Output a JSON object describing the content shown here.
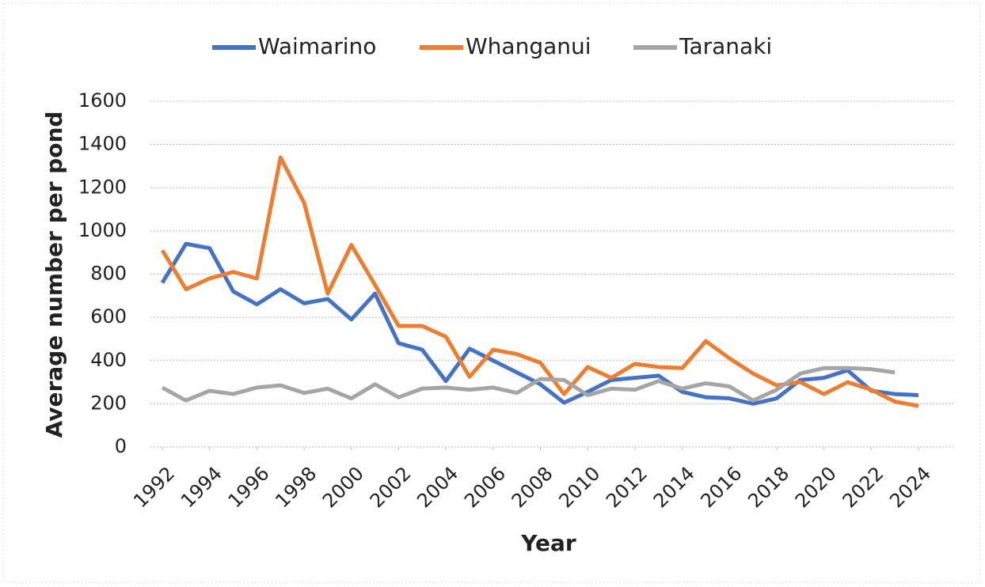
{
  "chart_data": {
    "type": "line",
    "x": [
      1992,
      1993,
      1994,
      1995,
      1996,
      1997,
      1998,
      1999,
      2000,
      2001,
      2002,
      2003,
      2004,
      2005,
      2006,
      2007,
      2008,
      2009,
      2010,
      2011,
      2012,
      2013,
      2014,
      2015,
      2016,
      2017,
      2018,
      2019,
      2020,
      2021,
      2022,
      2023,
      2024
    ],
    "series": [
      {
        "name": "Waimarino",
        "color": "#4472c4",
        "values": [
          760,
          940,
          920,
          720,
          660,
          730,
          665,
          685,
          590,
          710,
          480,
          450,
          305,
          455,
          400,
          345,
          290,
          205,
          255,
          310,
          320,
          330,
          255,
          230,
          225,
          200,
          225,
          310,
          320,
          355,
          260,
          245,
          240
        ]
      },
      {
        "name": "Whanganui",
        "color": "#ed7d31",
        "values": [
          910,
          730,
          780,
          810,
          780,
          1340,
          1130,
          710,
          935,
          750,
          560,
          560,
          510,
          325,
          450,
          430,
          390,
          245,
          370,
          320,
          385,
          370,
          365,
          490,
          410,
          340,
          285,
          300,
          245,
          300,
          265,
          210,
          190
        ]
      },
      {
        "name": "Taranaki",
        "color": "#a5a5a5",
        "values": [
          275,
          215,
          260,
          245,
          275,
          285,
          250,
          270,
          225,
          290,
          230,
          270,
          275,
          265,
          275,
          250,
          315,
          310,
          240,
          270,
          265,
          305,
          270,
          295,
          280,
          215,
          265,
          340,
          365,
          365,
          360,
          345,
          null
        ]
      }
    ],
    "xlabel": "Year",
    "ylabel": "Average number per pond",
    "xlim": [
      1992,
      2024
    ],
    "xticks": [
      1992,
      1994,
      1996,
      1998,
      2000,
      2002,
      2004,
      2006,
      2008,
      2010,
      2012,
      2014,
      2016,
      2018,
      2020,
      2022,
      2024
    ],
    "ylim": [
      0,
      1600
    ],
    "yticks": [
      0,
      200,
      400,
      600,
      800,
      1000,
      1200,
      1400,
      1600
    ],
    "grid": true,
    "legend": "top"
  }
}
